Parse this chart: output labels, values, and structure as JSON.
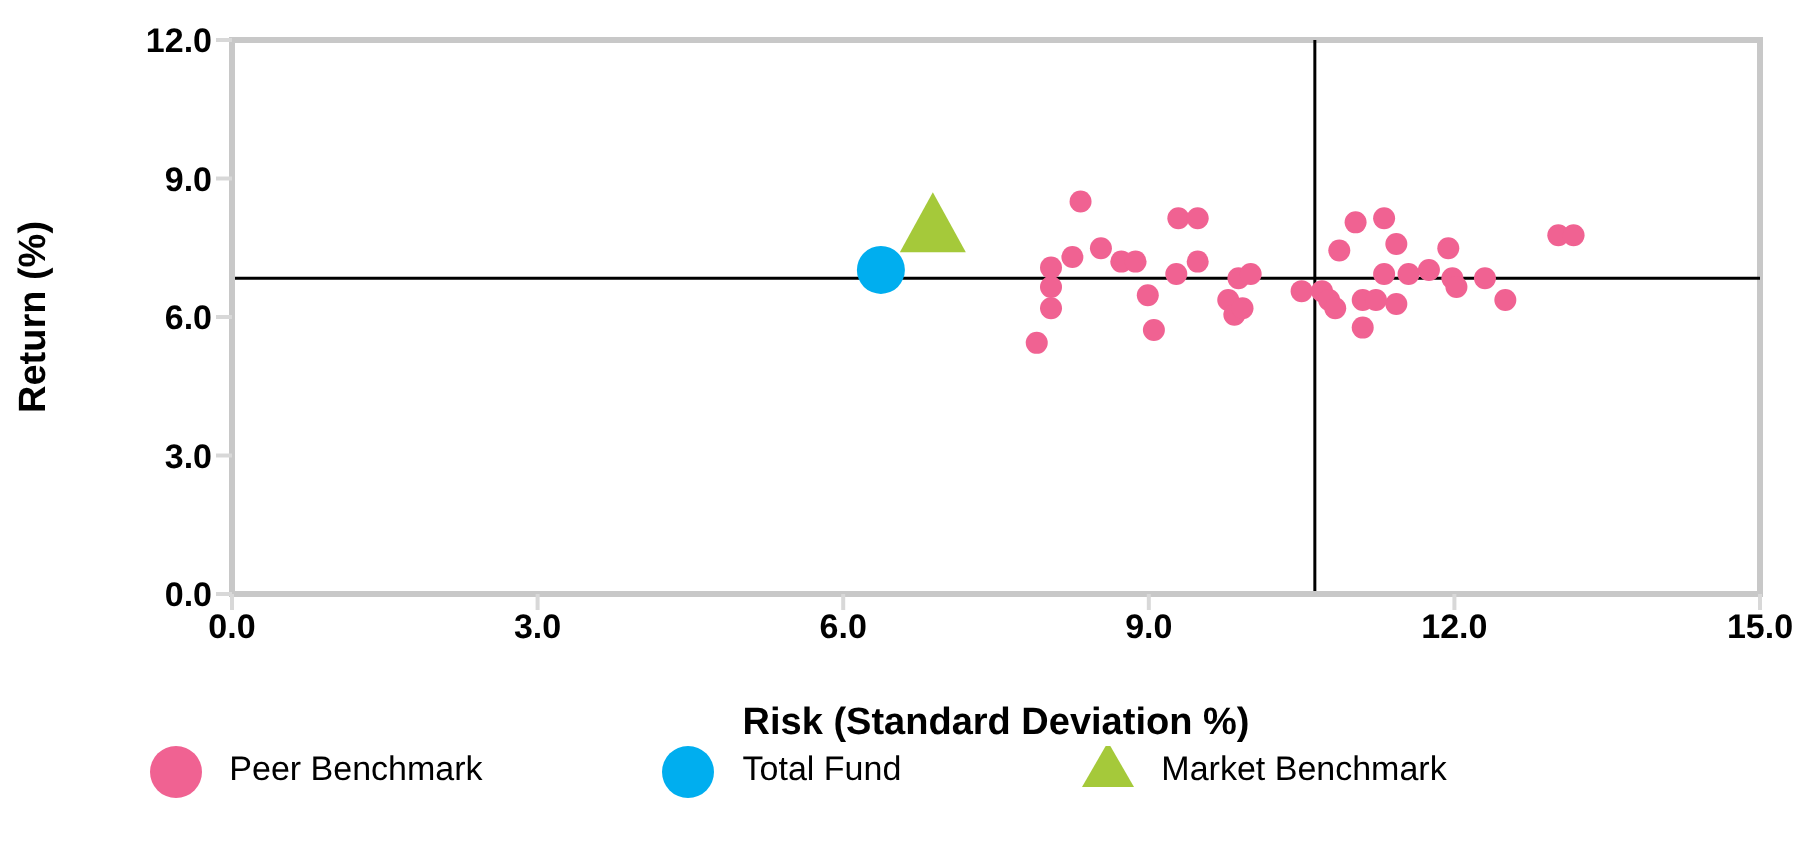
{
  "chart_data": {
    "type": "scatter",
    "xlabel": "Risk (Standard Deviation %)",
    "ylabel": "Return (%)",
    "xlim": [
      0,
      15
    ],
    "ylim": [
      0,
      12
    ],
    "xticks": [
      {
        "value": 0,
        "label": "0.0"
      },
      {
        "value": 3,
        "label": "3.0"
      },
      {
        "value": 6,
        "label": "6.0"
      },
      {
        "value": 9,
        "label": "9.0"
      },
      {
        "value": 12,
        "label": "12.0"
      },
      {
        "value": 15,
        "label": "15.0"
      }
    ],
    "yticks": [
      {
        "value": 0,
        "label": "0.0"
      },
      {
        "value": 3,
        "label": "3.0"
      },
      {
        "value": 6,
        "label": "6.0"
      },
      {
        "value": 9,
        "label": "9.0"
      },
      {
        "value": 12,
        "label": "12.0"
      }
    ],
    "grid": false,
    "legend": "bottom",
    "ref_lines": [
      {
        "axis": "x",
        "value": 10.63,
        "color": "#000000"
      },
      {
        "axis": "y",
        "value": 6.84,
        "color": "#000000"
      }
    ],
    "series": [
      {
        "name": "Peer Benchmark",
        "color": "#f06292",
        "marker": "circle",
        "x": [
          7.9,
          8.04,
          8.04,
          8.04,
          8.25,
          8.33,
          8.53,
          8.73,
          8.87,
          8.99,
          9.05,
          9.27,
          9.29,
          9.48,
          9.48,
          9.78,
          9.84,
          9.92,
          9.88,
          10.0,
          10.5,
          10.7,
          10.77,
          10.83,
          10.87,
          11.03,
          11.1,
          11.1,
          11.23,
          11.31,
          11.31,
          11.43,
          11.43,
          11.55,
          11.75,
          11.94,
          11.98,
          12.02,
          12.3,
          12.5,
          13.02,
          13.17
        ],
        "values": [
          5.44,
          7.07,
          6.65,
          6.19,
          7.3,
          8.5,
          7.49,
          7.2,
          7.2,
          6.47,
          5.72,
          6.93,
          8.14,
          8.14,
          7.2,
          6.37,
          6.05,
          6.19,
          6.84,
          6.93,
          6.56,
          6.56,
          6.37,
          6.19,
          7.44,
          8.05,
          6.37,
          5.77,
          6.37,
          8.14,
          6.93,
          7.58,
          6.28,
          6.93,
          7.02,
          7.49,
          6.84,
          6.65,
          6.84,
          6.37,
          7.77,
          7.77
        ]
      },
      {
        "name": "Total Fund",
        "color": "#00aeef",
        "marker": "circle",
        "x": [
          6.37
        ],
        "values": [
          7.02
        ]
      },
      {
        "name": "Market Benchmark",
        "color": "#a5c93a",
        "marker": "triangle",
        "x": [
          6.88
        ],
        "values": [
          8.05
        ]
      }
    ]
  }
}
